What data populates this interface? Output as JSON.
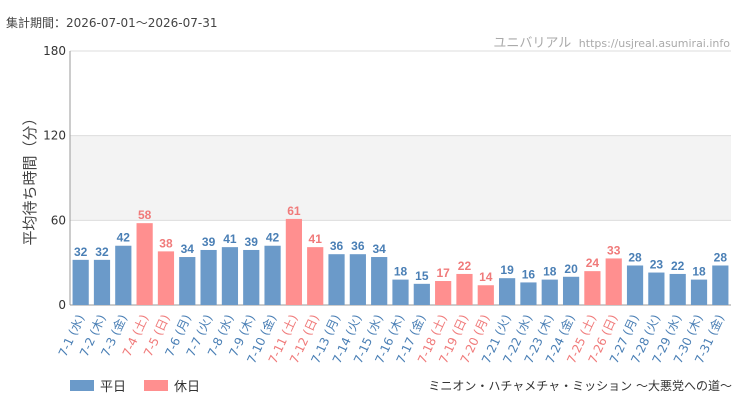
{
  "header": {
    "period_label": "集計期間：2026-07-01～2026-07-31",
    "site_name": "ユニバリアル",
    "site_url": "https://usjreal.asumirai.info"
  },
  "footer": {
    "attraction": "ミニオン・ハチャメチャ・ミッション ～大悪党への道～"
  },
  "colors": {
    "weekday": "#6b9ac9",
    "weekday_label": "#4a7fb5",
    "holiday": "#ff8f8f",
    "holiday_label": "#f07a7a",
    "grid": "#dddddd",
    "band": "#f3f3f3"
  },
  "chart_data": {
    "type": "bar",
    "ylabel": "平均待ち時間（分）",
    "ylim": [
      0,
      180
    ],
    "yticks": [
      0,
      60,
      120,
      180
    ],
    "band": [
      60,
      120
    ],
    "legend": [
      {
        "name": "平日",
        "kind": "weekday"
      },
      {
        "name": "休日",
        "kind": "holiday"
      }
    ],
    "categories": [
      "7-1 (水)",
      "7-2 (木)",
      "7-3 (金)",
      "7-4 (土)",
      "7-5 (日)",
      "7-6 (月)",
      "7-7 (火)",
      "7-8 (水)",
      "7-9 (木)",
      "7-10 (金)",
      "7-11 (土)",
      "7-12 (日)",
      "7-13 (月)",
      "7-14 (火)",
      "7-15 (水)",
      "7-16 (木)",
      "7-17 (金)",
      "7-18 (土)",
      "7-19 (日)",
      "7-20 (月)",
      "7-21 (火)",
      "7-22 (水)",
      "7-23 (木)",
      "7-24 (金)",
      "7-25 (土)",
      "7-26 (日)",
      "7-27 (月)",
      "7-28 (火)",
      "7-29 (水)",
      "7-30 (木)",
      "7-31 (金)"
    ],
    "values": [
      32,
      32,
      42,
      58,
      38,
      34,
      39,
      41,
      39,
      42,
      61,
      41,
      36,
      36,
      34,
      18,
      15,
      17,
      22,
      14,
      19,
      16,
      18,
      20,
      24,
      33,
      28,
      23,
      22,
      18,
      28
    ],
    "kinds": [
      "weekday",
      "weekday",
      "weekday",
      "holiday",
      "holiday",
      "weekday",
      "weekday",
      "weekday",
      "weekday",
      "weekday",
      "holiday",
      "holiday",
      "weekday",
      "weekday",
      "weekday",
      "weekday",
      "weekday",
      "holiday",
      "holiday",
      "holiday",
      "weekday",
      "weekday",
      "weekday",
      "weekday",
      "holiday",
      "holiday",
      "weekday",
      "weekday",
      "weekday",
      "weekday",
      "weekday"
    ]
  }
}
